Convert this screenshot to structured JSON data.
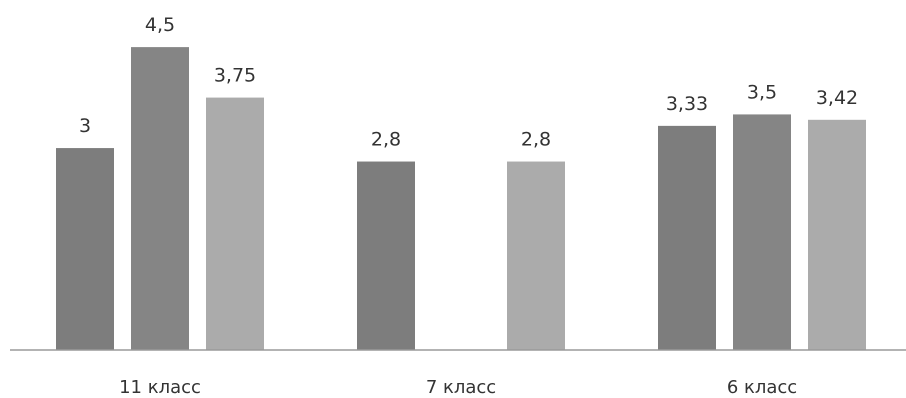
{
  "chart_data": {
    "type": "bar",
    "categories": [
      "11 класс",
      "7 класс",
      "6 класс"
    ],
    "series": [
      {
        "values": [
          3,
          2.8,
          3.33
        ],
        "labels": [
          "3",
          "2,8",
          "3,33"
        ],
        "color": "#7d7d7d"
      },
      {
        "values": [
          4.5,
          null,
          3.5
        ],
        "labels": [
          "4,5",
          "",
          "3,5"
        ],
        "color": "#858585"
      },
      {
        "values": [
          3.75,
          2.8,
          3.42
        ],
        "labels": [
          "3,75",
          "2,8",
          "3,42"
        ],
        "color": "#ababab"
      }
    ],
    "ylim": [
      0,
      5.2
    ],
    "grid": false,
    "legend": "none",
    "title": "",
    "xlabel": "",
    "ylabel": ""
  }
}
